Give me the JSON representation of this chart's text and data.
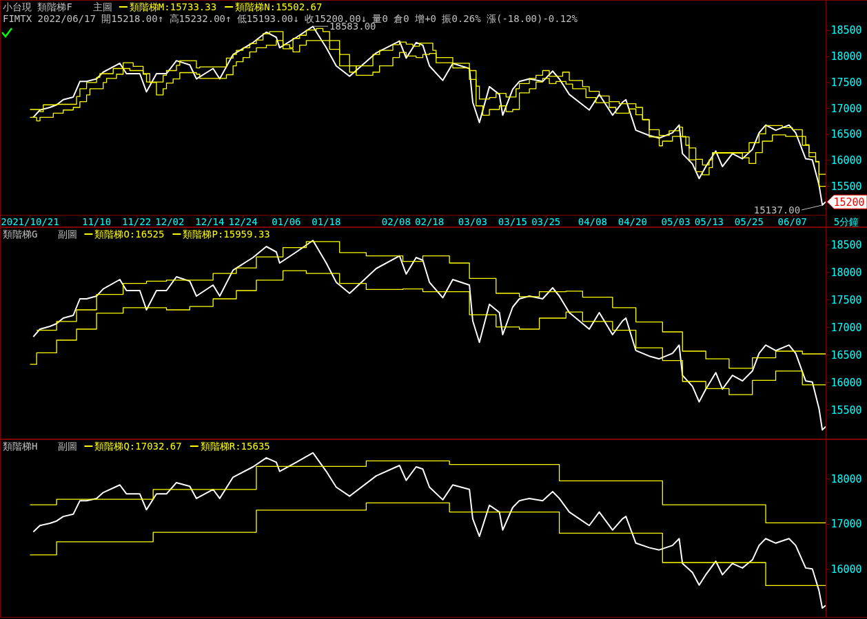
{
  "chart_data": [
    {
      "type": "line",
      "legend": "top left",
      "title": "小台現 類階梯F",
      "subtitle": "主圖",
      "xlabel": "5分鐘",
      "xlim": [
        "2021-10-12",
        "2022-06-17"
      ],
      "ylim": [
        14950,
        19090
      ],
      "xticks": [
        {
          "value": "2021-10-21",
          "label": "2021/10/21"
        },
        {
          "value": "2021-11-10",
          "label": "11/10"
        },
        {
          "value": "2021-11-22",
          "label": "11/22"
        },
        {
          "value": "2021-12-02",
          "label": "12/02"
        },
        {
          "value": "2021-12-14",
          "label": "12/14"
        },
        {
          "value": "2021-12-24",
          "label": "12/24"
        },
        {
          "value": "2022-01-06",
          "label": "01/06"
        },
        {
          "value": "2022-01-18",
          "label": "01/18"
        },
        {
          "value": "2022-02-08",
          "label": "02/08"
        },
        {
          "value": "2022-02-18",
          "label": "02/18"
        },
        {
          "value": "2022-03-03",
          "label": "03/03"
        },
        {
          "value": "2022-03-15",
          "label": "03/15"
        },
        {
          "value": "2022-03-25",
          "label": "03/25"
        },
        {
          "value": "2022-04-08",
          "label": "04/08"
        },
        {
          "value": "2022-04-20",
          "label": "04/20"
        },
        {
          "value": "2022-05-03",
          "label": "05/03"
        },
        {
          "value": "2022-05-13",
          "label": "05/13"
        },
        {
          "value": "2022-05-25",
          "label": "05/25"
        },
        {
          "value": "2022-06-07",
          "label": "06/07"
        }
      ],
      "yticks": [
        15500,
        16000,
        16500,
        17000,
        17500,
        18000,
        18500
      ],
      "annotations": [
        "FIMTX 2022/06/17 開15218.00↑ 高15232.00↑ 低15193.00↓ 收15200.00↓ 量0 倉0 增+0 振0.26% 漲(-18.00)-0.12%",
        {
          "text": "18583.00",
          "x": "2022-01-14",
          "y": 18583
        },
        {
          "text": "15137.00",
          "x": "2022-06-16",
          "y": 15137
        },
        {
          "text": "15200",
          "x": "2022-06-17",
          "y": 15200
        }
      ],
      "series": [
        {
          "color": "#ffffff",
          "x": [
            "2021-10-22",
            "2021-10-24",
            "2021-10-27",
            "2021-10-29",
            "2021-10-31",
            "2021-11-03",
            "2021-11-05",
            "2021-11-07",
            "2021-11-10",
            "2021-11-12",
            "2021-11-17",
            "2021-11-19",
            "2021-11-23",
            "2021-11-25",
            "2021-11-28",
            "2021-12-01",
            "2021-12-04",
            "2021-12-08",
            "2021-12-10",
            "2021-12-15",
            "2021-12-17",
            "2021-12-21",
            "2021-12-27",
            "2021-12-31",
            "2022-01-03",
            "2022-01-04",
            "2022-01-09",
            "2022-01-14",
            "2022-01-18",
            "2022-01-21",
            "2022-01-25",
            "2022-02-02",
            "2022-02-09",
            "2022-02-11",
            "2022-02-14",
            "2022-02-16",
            "2022-02-18",
            "2022-02-22",
            "2022-02-25",
            "2022-03-02",
            "2022-03-03",
            "2022-03-05",
            "2022-03-08",
            "2022-03-11",
            "2022-03-12",
            "2022-03-15",
            "2022-03-17",
            "2022-03-20",
            "2022-03-24",
            "2022-03-27",
            "2022-03-29",
            "2022-04-01",
            "2022-04-07",
            "2022-04-10",
            "2022-04-14",
            "2022-04-17",
            "2022-04-18",
            "2022-04-21",
            "2022-04-25",
            "2022-04-28",
            "2022-05-02",
            "2022-05-04",
            "2022-05-05",
            "2022-05-08",
            "2022-05-10",
            "2022-05-12",
            "2022-05-15",
            "2022-05-17",
            "2022-05-20",
            "2022-05-23",
            "2022-05-26",
            "2022-05-28",
            "2022-05-30",
            "2022-06-02",
            "2022-06-06",
            "2022-06-08",
            "2022-06-11",
            "2022-06-13",
            "2022-06-15",
            "2022-06-16",
            "2022-06-17"
          ],
          "values": [
            16830,
            16970,
            17020,
            17070,
            17170,
            17220,
            17520,
            17520,
            17570,
            17700,
            17870,
            17670,
            17670,
            17320,
            17670,
            17670,
            17920,
            17840,
            17570,
            17770,
            17570,
            18040,
            18270,
            18470,
            18370,
            18170,
            18370,
            18580,
            18170,
            17820,
            17620,
            18070,
            18300,
            17970,
            18270,
            18220,
            17820,
            17540,
            17870,
            17770,
            17120,
            16730,
            17420,
            17270,
            16870,
            17370,
            17520,
            17570,
            17520,
            17720,
            17570,
            17270,
            16970,
            17270,
            16870,
            17120,
            17170,
            16580,
            16480,
            16430,
            16530,
            16680,
            16130,
            15930,
            15650,
            15880,
            16180,
            15880,
            16130,
            16030,
            16210,
            16530,
            16680,
            16580,
            16680,
            16530,
            16030,
            16010,
            15530,
            15140,
            15200
          ]
        },
        {
          "name": "類階梯M:15733.33",
          "type": "step",
          "color": "#ffff00",
          "x": [
            "2021-10-21",
            "2021-10-24",
            "2021-10-25",
            "2021-10-29",
            "2021-11-04",
            "2021-11-05",
            "2021-11-07",
            "2021-11-10",
            "2021-11-11",
            "2021-11-15",
            "2021-11-18",
            "2021-11-21",
            "2021-11-24",
            "2021-11-25",
            "2021-11-30",
            "2021-12-01",
            "2021-12-04",
            "2021-12-05",
            "2021-12-10",
            "2021-12-11",
            "2021-12-19",
            "2021-12-21",
            "2021-12-22",
            "2021-12-24",
            "2021-12-26",
            "2021-12-28",
            "2021-12-30",
            "2022-01-01",
            "2022-01-05",
            "2022-01-07",
            "2022-01-08",
            "2022-01-10",
            "2022-01-12",
            "2022-01-15",
            "2022-01-17",
            "2022-01-19",
            "2022-01-22",
            "2022-01-25",
            "2022-01-27",
            "2022-02-01",
            "2022-02-03",
            "2022-02-07",
            "2022-02-09",
            "2022-02-11",
            "2022-02-13",
            "2022-02-15",
            "2022-02-19",
            "2022-02-20",
            "2022-02-25",
            "2022-03-02",
            "2022-03-04",
            "2022-03-05",
            "2022-03-08",
            "2022-03-10",
            "2022-03-13",
            "2022-03-16",
            "2022-03-17",
            "2022-03-20",
            "2022-03-22",
            "2022-03-24",
            "2022-03-26",
            "2022-03-30",
            "2022-04-01",
            "2022-04-05",
            "2022-04-07",
            "2022-04-10",
            "2022-04-13",
            "2022-04-16",
            "2022-04-21",
            "2022-04-23",
            "2022-04-25",
            "2022-04-28",
            "2022-05-01",
            "2022-05-04",
            "2022-05-05",
            "2022-05-07",
            "2022-05-09",
            "2022-05-11",
            "2022-05-13",
            "2022-05-14",
            "2022-05-25",
            "2022-05-28",
            "2022-05-30",
            "2022-06-04",
            "2022-06-07",
            "2022-06-10",
            "2022-06-12",
            "2022-06-14",
            "2022-06-15",
            "2022-06-17"
          ],
          "values": [
            16980,
            16940,
            17070,
            17080,
            17230,
            17380,
            17500,
            17600,
            17670,
            17770,
            17880,
            17810,
            17660,
            17510,
            17640,
            17730,
            17830,
            17920,
            17780,
            17800,
            17970,
            18040,
            18120,
            18170,
            18250,
            18320,
            18440,
            18480,
            18230,
            18170,
            18350,
            18410,
            18510,
            18540,
            18480,
            18140,
            17820,
            17700,
            17820,
            18040,
            18120,
            18230,
            18280,
            18240,
            18200,
            18260,
            18120,
            17980,
            17870,
            17730,
            17430,
            17180,
            17210,
            17290,
            17220,
            17380,
            17480,
            17580,
            17640,
            17730,
            17620,
            17700,
            17540,
            17420,
            17330,
            17240,
            17130,
            17090,
            17020,
            16790,
            16590,
            16480,
            16570,
            16640,
            16450,
            16240,
            16020,
            15910,
            16010,
            16150,
            16340,
            16510,
            16670,
            16630,
            16590,
            16290,
            16070,
            15980,
            15730,
            15730
          ]
        },
        {
          "name": "類階梯N:15502.67",
          "type": "step",
          "color": "#ffff00",
          "x": [
            "2021-10-21",
            "2021-10-23",
            "2021-10-24",
            "2021-10-28",
            "2021-10-31",
            "2021-11-03",
            "2021-11-05",
            "2021-11-07",
            "2021-11-08",
            "2021-11-12",
            "2021-11-13",
            "2021-11-16",
            "2021-11-18",
            "2021-11-20",
            "2021-11-24",
            "2021-11-26",
            "2021-11-28",
            "2021-11-30",
            "2021-12-01",
            "2021-12-03",
            "2021-12-05",
            "2021-12-10",
            "2021-12-11",
            "2021-12-19",
            "2021-12-21",
            "2021-12-22",
            "2021-12-24",
            "2021-12-26",
            "2021-12-28",
            "2021-12-31",
            "2022-01-03",
            "2022-01-05",
            "2022-01-08",
            "2022-01-10",
            "2022-01-12",
            "2022-01-22",
            "2022-01-25",
            "2022-01-27",
            "2022-02-01",
            "2022-02-03",
            "2022-02-07",
            "2022-02-09",
            "2022-02-11",
            "2022-02-14",
            "2022-02-16",
            "2022-02-18",
            "2022-02-20",
            "2022-02-25",
            "2022-03-02",
            "2022-03-04",
            "2022-03-06",
            "2022-03-08",
            "2022-03-11",
            "2022-03-13",
            "2022-03-15",
            "2022-03-17",
            "2022-03-20",
            "2022-03-22",
            "2022-03-24",
            "2022-03-26",
            "2022-03-28",
            "2022-03-31",
            "2022-04-02",
            "2022-04-06",
            "2022-04-09",
            "2022-04-13",
            "2022-04-15",
            "2022-04-19",
            "2022-04-21",
            "2022-04-23",
            "2022-04-25",
            "2022-04-28",
            "2022-04-29",
            "2022-05-02",
            "2022-05-06",
            "2022-05-07",
            "2022-05-09",
            "2022-05-11",
            "2022-05-13",
            "2022-05-14",
            "2022-05-23",
            "2022-05-25",
            "2022-05-27",
            "2022-05-29",
            "2022-06-01",
            "2022-06-05",
            "2022-06-11",
            "2022-06-12",
            "2022-06-14",
            "2022-06-15",
            "2022-06-17"
          ],
          "values": [
            16830,
            16760,
            16830,
            16910,
            16970,
            17020,
            17130,
            17260,
            17380,
            17500,
            17580,
            17660,
            17770,
            17730,
            17670,
            17500,
            17260,
            17380,
            17490,
            17570,
            17690,
            17660,
            17580,
            17650,
            17820,
            17900,
            17980,
            18090,
            18170,
            18220,
            18310,
            18150,
            18090,
            18220,
            18310,
            18040,
            17820,
            17640,
            17700,
            17820,
            17980,
            18080,
            18010,
            17980,
            18040,
            18060,
            17880,
            17780,
            17560,
            17050,
            16870,
            16980,
            17050,
            16940,
            16980,
            17300,
            17380,
            17510,
            17580,
            17480,
            17520,
            17470,
            17380,
            17210,
            17110,
            17020,
            16910,
            16990,
            16880,
            16780,
            16450,
            16280,
            16370,
            16460,
            16290,
            16010,
            15780,
            15720,
            15860,
            16140,
            16050,
            15940,
            16150,
            16370,
            16490,
            16460,
            16300,
            16150,
            15970,
            15500,
            15500
          ]
        }
      ]
    },
    {
      "type": "line",
      "legend": "top left",
      "title": "類階梯G",
      "subtitle": "副圖",
      "tick_labels": "y",
      "xlim": [
        "2021-10-12",
        "2022-06-17"
      ],
      "ylim": [
        14970,
        18820
      ],
      "yticks": [
        15500,
        16000,
        16500,
        17000,
        17500,
        18000,
        18500
      ],
      "series": [
        {
          "color": "#ffffff",
          "x": [
            "2021-10-22",
            "2021-10-24",
            "2021-10-27",
            "2021-10-29",
            "2021-10-31",
            "2021-11-03",
            "2021-11-05",
            "2021-11-07",
            "2021-11-10",
            "2021-11-12",
            "2021-11-17",
            "2021-11-19",
            "2021-11-23",
            "2021-11-25",
            "2021-11-28",
            "2021-12-01",
            "2021-12-04",
            "2021-12-08",
            "2021-12-10",
            "2021-12-15",
            "2021-12-17",
            "2021-12-21",
            "2021-12-27",
            "2021-12-31",
            "2022-01-03",
            "2022-01-04",
            "2022-01-09",
            "2022-01-14",
            "2022-01-18",
            "2022-01-21",
            "2022-01-25",
            "2022-02-02",
            "2022-02-09",
            "2022-02-11",
            "2022-02-14",
            "2022-02-16",
            "2022-02-18",
            "2022-02-22",
            "2022-02-25",
            "2022-03-02",
            "2022-03-03",
            "2022-03-05",
            "2022-03-08",
            "2022-03-11",
            "2022-03-12",
            "2022-03-15",
            "2022-03-17",
            "2022-03-20",
            "2022-03-24",
            "2022-03-27",
            "2022-03-29",
            "2022-04-01",
            "2022-04-07",
            "2022-04-10",
            "2022-04-14",
            "2022-04-17",
            "2022-04-18",
            "2022-04-21",
            "2022-04-25",
            "2022-04-28",
            "2022-05-02",
            "2022-05-04",
            "2022-05-05",
            "2022-05-08",
            "2022-05-10",
            "2022-05-12",
            "2022-05-15",
            "2022-05-17",
            "2022-05-20",
            "2022-05-23",
            "2022-05-26",
            "2022-05-28",
            "2022-05-30",
            "2022-06-02",
            "2022-06-06",
            "2022-06-08",
            "2022-06-11",
            "2022-06-13",
            "2022-06-15",
            "2022-06-16",
            "2022-06-17"
          ],
          "values": [
            16830,
            16970,
            17020,
            17070,
            17170,
            17220,
            17520,
            17520,
            17570,
            17700,
            17870,
            17670,
            17670,
            17320,
            17670,
            17670,
            17920,
            17840,
            17570,
            17770,
            17570,
            18040,
            18270,
            18470,
            18370,
            18170,
            18370,
            18580,
            18170,
            17820,
            17620,
            18070,
            18300,
            17970,
            18270,
            18220,
            17820,
            17540,
            17870,
            17770,
            17120,
            16730,
            17420,
            17270,
            16870,
            17370,
            17520,
            17570,
            17520,
            17720,
            17570,
            17270,
            16970,
            17270,
            16870,
            17120,
            17170,
            16580,
            16480,
            16430,
            16530,
            16680,
            16130,
            15930,
            15650,
            15880,
            16180,
            15880,
            16130,
            16030,
            16210,
            16530,
            16680,
            16580,
            16680,
            16530,
            16030,
            16010,
            15530,
            15140,
            15200
          ]
        },
        {
          "name": "類階梯O:16525",
          "type": "step",
          "color": "#ffff00",
          "x": [
            "2021-10-23",
            "2021-10-29",
            "2021-11-04",
            "2021-11-10",
            "2021-11-18",
            "2021-11-25",
            "2021-12-01",
            "2021-12-15",
            "2021-12-22",
            "2021-12-28",
            "2022-01-05",
            "2022-01-12",
            "2022-01-22",
            "2022-01-30",
            "2022-02-10",
            "2022-02-16",
            "2022-02-24",
            "2022-03-02",
            "2022-03-10",
            "2022-03-17",
            "2022-03-23",
            "2022-03-31",
            "2022-04-05",
            "2022-04-14",
            "2022-04-21",
            "2022-04-29",
            "2022-05-05",
            "2022-05-12",
            "2022-05-19",
            "2022-05-26",
            "2022-06-02",
            "2022-06-10",
            "2022-06-17"
          ],
          "values": [
            16950,
            17110,
            17320,
            17600,
            17800,
            17840,
            17860,
            17980,
            18080,
            18280,
            18450,
            18560,
            18360,
            18300,
            18200,
            18300,
            18170,
            17890,
            17620,
            17560,
            17650,
            17660,
            17550,
            17360,
            17100,
            16920,
            16570,
            16430,
            16260,
            16450,
            16570,
            16520,
            16520
          ]
        },
        {
          "name": "類階梯P:15959.33",
          "type": "step",
          "color": "#ffff00",
          "x": [
            "2021-10-21",
            "2021-10-23",
            "2021-10-29",
            "2021-11-04",
            "2021-11-10",
            "2021-11-18",
            "2021-12-01",
            "2021-12-08",
            "2021-12-15",
            "2021-12-22",
            "2021-12-28",
            "2022-01-05",
            "2022-01-12",
            "2022-01-22",
            "2022-01-30",
            "2022-02-10",
            "2022-02-16",
            "2022-03-02",
            "2022-03-10",
            "2022-03-17",
            "2022-03-23",
            "2022-03-31",
            "2022-04-05",
            "2022-04-14",
            "2022-04-21",
            "2022-04-29",
            "2022-05-05",
            "2022-05-12",
            "2022-05-19",
            "2022-05-26",
            "2022-06-02",
            "2022-06-10",
            "2022-06-17"
          ],
          "values": [
            16330,
            16540,
            16770,
            16970,
            17260,
            17360,
            17320,
            17380,
            17520,
            17670,
            17860,
            18030,
            17980,
            17800,
            17690,
            17700,
            17650,
            17230,
            17010,
            16970,
            17170,
            17280,
            17110,
            16950,
            16630,
            16400,
            16020,
            15890,
            15780,
            16040,
            16210,
            15960,
            15960
          ]
        }
      ]
    },
    {
      "type": "line",
      "legend": "top left",
      "title": "類階梯H",
      "subtitle": "副圖",
      "tick_labels": "y",
      "xlim": [
        "2021-10-12",
        "2022-06-17"
      ],
      "ylim": [
        14930,
        18880
      ],
      "yticks": [
        16000,
        17000,
        18000
      ],
      "series": [
        {
          "color": "#ffffff",
          "x": [
            "2021-10-22",
            "2021-10-24",
            "2021-10-27",
            "2021-10-29",
            "2021-10-31",
            "2021-11-03",
            "2021-11-05",
            "2021-11-07",
            "2021-11-10",
            "2021-11-12",
            "2021-11-17",
            "2021-11-19",
            "2021-11-23",
            "2021-11-25",
            "2021-11-28",
            "2021-12-01",
            "2021-12-04",
            "2021-12-08",
            "2021-12-10",
            "2021-12-15",
            "2021-12-17",
            "2021-12-21",
            "2021-12-27",
            "2021-12-31",
            "2022-01-03",
            "2022-01-04",
            "2022-01-09",
            "2022-01-14",
            "2022-01-18",
            "2022-01-21",
            "2022-01-25",
            "2022-02-02",
            "2022-02-09",
            "2022-02-11",
            "2022-02-14",
            "2022-02-16",
            "2022-02-18",
            "2022-02-22",
            "2022-02-25",
            "2022-03-02",
            "2022-03-03",
            "2022-03-05",
            "2022-03-08",
            "2022-03-11",
            "2022-03-12",
            "2022-03-15",
            "2022-03-17",
            "2022-03-20",
            "2022-03-24",
            "2022-03-27",
            "2022-03-29",
            "2022-04-01",
            "2022-04-07",
            "2022-04-10",
            "2022-04-14",
            "2022-04-17",
            "2022-04-18",
            "2022-04-21",
            "2022-04-25",
            "2022-04-28",
            "2022-05-02",
            "2022-05-04",
            "2022-05-05",
            "2022-05-08",
            "2022-05-10",
            "2022-05-12",
            "2022-05-15",
            "2022-05-17",
            "2022-05-20",
            "2022-05-23",
            "2022-05-26",
            "2022-05-28",
            "2022-05-30",
            "2022-06-02",
            "2022-06-06",
            "2022-06-08",
            "2022-06-11",
            "2022-06-13",
            "2022-06-15",
            "2022-06-16",
            "2022-06-17"
          ],
          "values": [
            16830,
            16970,
            17020,
            17070,
            17170,
            17220,
            17520,
            17520,
            17570,
            17700,
            17870,
            17670,
            17670,
            17320,
            17670,
            17670,
            17920,
            17840,
            17570,
            17770,
            17570,
            18040,
            18270,
            18470,
            18370,
            18170,
            18370,
            18580,
            18170,
            17820,
            17620,
            18070,
            18300,
            17970,
            18270,
            18220,
            17820,
            17540,
            17870,
            17770,
            17120,
            16730,
            17420,
            17270,
            16870,
            17370,
            17520,
            17570,
            17520,
            17720,
            17570,
            17270,
            16970,
            17270,
            16870,
            17120,
            17170,
            16580,
            16480,
            16430,
            16530,
            16680,
            16130,
            15930,
            15650,
            15880,
            16180,
            15880,
            16130,
            16030,
            16210,
            16530,
            16680,
            16580,
            16680,
            16530,
            16030,
            16010,
            15530,
            15140,
            15200
          ]
        },
        {
          "name": "類階梯Q:17032.67",
          "type": "step",
          "color": "#ffff00",
          "x": [
            "2021-10-21",
            "2021-10-29",
            "2021-11-27",
            "2021-12-28",
            "2022-01-30",
            "2022-02-24",
            "2022-03-29",
            "2022-04-29",
            "2022-05-30",
            "2022-06-17"
          ],
          "values": [
            17430,
            17550,
            17770,
            18280,
            18400,
            18320,
            17960,
            17430,
            17030,
            17030
          ]
        },
        {
          "name": "類階梯R:15635",
          "type": "step",
          "color": "#ffff00",
          "x": [
            "2021-10-21",
            "2021-10-29",
            "2021-11-27",
            "2021-12-28",
            "2022-01-30",
            "2022-02-24",
            "2022-03-29",
            "2022-04-29",
            "2022-05-30",
            "2022-06-17"
          ],
          "values": [
            16320,
            16610,
            16820,
            17310,
            17470,
            17270,
            16800,
            16150,
            15640,
            15640
          ]
        }
      ]
    }
  ]
}
